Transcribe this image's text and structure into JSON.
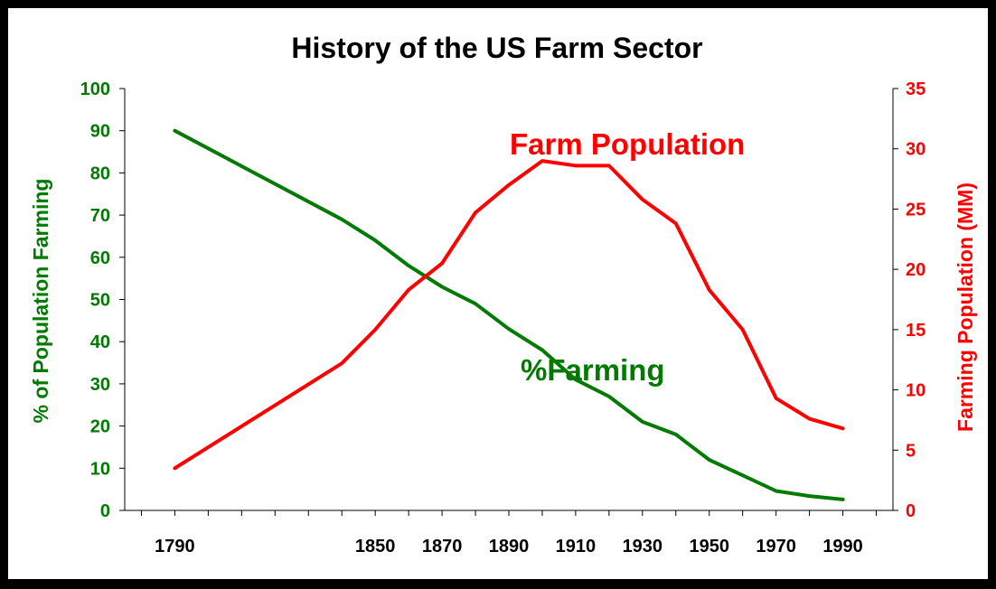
{
  "chart_data": {
    "type": "line",
    "title": "History of the US Farm Sector",
    "x_ticks": [
      1790,
      1850,
      1870,
      1890,
      1910,
      1930,
      1950,
      1970,
      1990
    ],
    "xlim": [
      1775,
      2005
    ],
    "y_left": {
      "label": "% of Population Farming",
      "lim": [
        0,
        100
      ],
      "ticks": [
        0,
        10,
        20,
        30,
        40,
        50,
        60,
        70,
        80,
        90,
        100
      ],
      "color": "#007a00"
    },
    "y_right": {
      "label": "Farming Population (MM)",
      "lim": [
        0,
        35
      ],
      "ticks": [
        0,
        5,
        10,
        15,
        20,
        25,
        30,
        35
      ],
      "color": "#ff0000"
    },
    "series": [
      {
        "name": "%Farming",
        "axis": "left",
        "color": "#007a00",
        "x": [
          1790,
          1840,
          1850,
          1860,
          1870,
          1880,
          1890,
          1900,
          1910,
          1920,
          1930,
          1940,
          1950,
          1960,
          1970,
          1980,
          1990
        ],
        "values": [
          90,
          69,
          64,
          58,
          53,
          49,
          43,
          38,
          31,
          27,
          21,
          18,
          12,
          8.3,
          4.6,
          3.4,
          2.6
        ]
      },
      {
        "name": "Farm Population",
        "axis": "right",
        "color": "#ff0000",
        "x": [
          1790,
          1840,
          1850,
          1860,
          1870,
          1880,
          1890,
          1900,
          1910,
          1920,
          1930,
          1940,
          1950,
          1960,
          1970,
          1980,
          1990
        ],
        "values": [
          3.5,
          12.2,
          15.0,
          18.3,
          20.5,
          24.7,
          27.0,
          29.0,
          28.6,
          28.6,
          25.8,
          23.8,
          18.3,
          15.0,
          9.3,
          7.6,
          6.8
        ]
      }
    ]
  }
}
